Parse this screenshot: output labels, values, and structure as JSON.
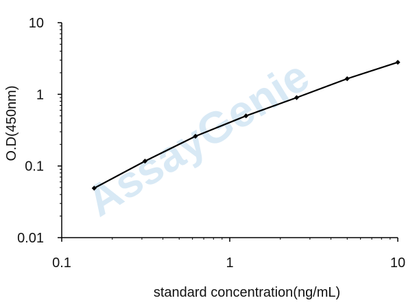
{
  "chart_data": {
    "type": "line",
    "title": "",
    "xlabel": "standard concentration(ng/mL)",
    "ylabel": "O.D(450nm)",
    "x_scale": "log",
    "y_scale": "log",
    "xlim": [
      0.1,
      10
    ],
    "ylim": [
      0.01,
      10
    ],
    "x_ticks": [
      0.1,
      1,
      10
    ],
    "x_tick_labels": [
      "0.1",
      "1",
      "10"
    ],
    "y_ticks": [
      0.01,
      0.1,
      1,
      10
    ],
    "y_tick_labels": [
      "0.01",
      "0.1",
      "1",
      "10"
    ],
    "grid": false,
    "legend": "none",
    "series": [
      {
        "x": [
          0.156,
          0.313,
          0.625,
          1.25,
          2.5,
          5,
          10
        ],
        "y": [
          0.049,
          0.117,
          0.26,
          0.5,
          0.9,
          1.65,
          2.8
        ],
        "color": "#000000",
        "marker": "diamond"
      }
    ]
  },
  "watermark": {
    "text": "AssayGenie",
    "color": "#a9cfe8"
  }
}
